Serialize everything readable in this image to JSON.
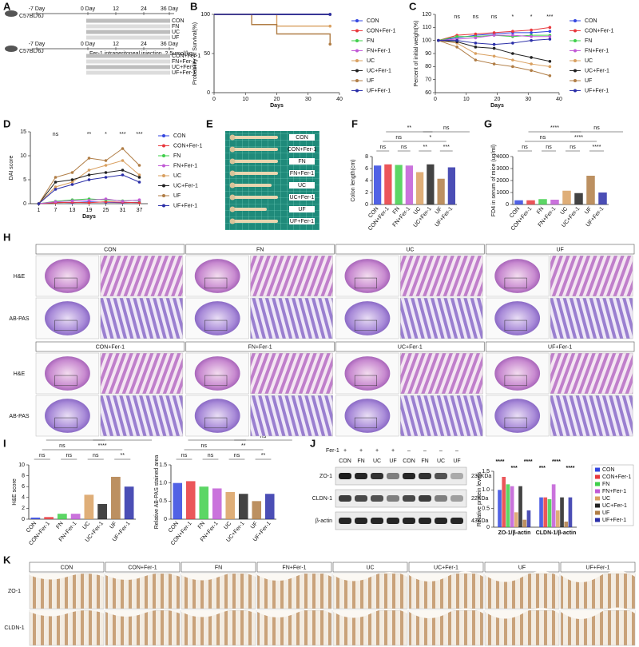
{
  "panel_a": {
    "letter": "A",
    "strain": "C57BL/6J",
    "timeline": [
      "-7 Day",
      "0 Day",
      "12",
      "24",
      "36 Day"
    ],
    "groups1": [
      "CON",
      "FN",
      "UC",
      "UF"
    ],
    "groups2": [
      "CON+Fer-1",
      "FN+Fer-1",
      "UC+Fer-1",
      "UF+Fer-1"
    ],
    "treatment2": "Fer-1 intraperitoneal injection, 2.5umol/kg"
  },
  "chart_data": [
    {
      "letter": "B",
      "type": "step",
      "xlabel": "Days",
      "ylabel": "Probability of Survival(%)",
      "x": [
        0,
        12,
        20,
        37
      ],
      "xlim": [
        0,
        40
      ],
      "xticks": [
        0,
        10,
        20,
        30,
        40
      ],
      "ylim": [
        0,
        100
      ],
      "yticks": [
        0,
        50,
        100
      ],
      "series": [
        {
          "name": "CON",
          "color": "#3346e0",
          "values": [
            100,
            100,
            100,
            100
          ]
        },
        {
          "name": "CON+Fer-1",
          "color": "#e8383d",
          "values": [
            100,
            100,
            100,
            100
          ]
        },
        {
          "name": "FN",
          "color": "#3fcf4a",
          "values": [
            100,
            100,
            100,
            100
          ]
        },
        {
          "name": "FN+Fer-1",
          "color": "#c15ad6",
          "values": [
            100,
            100,
            100,
            100
          ]
        },
        {
          "name": "UC",
          "color": "#d9a060",
          "values": [
            100,
            100,
            85,
            85
          ]
        },
        {
          "name": "UC+Fer-1",
          "color": "#222222",
          "values": [
            100,
            100,
            100,
            100
          ]
        },
        {
          "name": "UF",
          "color": "#b07d45",
          "values": [
            100,
            87,
            75,
            62
          ]
        },
        {
          "name": "UF+Fer-1",
          "color": "#2b2fa8",
          "values": [
            100,
            100,
            100,
            100
          ]
        }
      ]
    },
    {
      "letter": "C",
      "type": "line",
      "xlabel": "Days",
      "ylabel": "Percent of initial weight(%)",
      "x": [
        1,
        7,
        13,
        19,
        25,
        31,
        37
      ],
      "xlim": [
        0,
        40
      ],
      "xticks": [
        0,
        10,
        20,
        30,
        40
      ],
      "ylim": [
        60,
        120
      ],
      "yticks": [
        60,
        70,
        80,
        90,
        100,
        110,
        120
      ],
      "annotations": [
        "ns",
        "ns",
        "ns",
        "*",
        "*",
        "***"
      ],
      "series": [
        {
          "name": "CON",
          "color": "#3346e0",
          "values": [
            100,
            102,
            104,
            105,
            106,
            106,
            107
          ]
        },
        {
          "name": "CON+Fer-1",
          "color": "#e8383d",
          "values": [
            100,
            104,
            105,
            106,
            107,
            108,
            110
          ]
        },
        {
          "name": "FN",
          "color": "#3fcf4a",
          "values": [
            100,
            103,
            103,
            104,
            103,
            104,
            104
          ]
        },
        {
          "name": "FN+Fer-1",
          "color": "#c15ad6",
          "values": [
            100,
            101,
            102,
            104,
            104,
            103,
            103
          ]
        },
        {
          "name": "UC",
          "color": "#d9a060",
          "values": [
            100,
            98,
            90,
            88,
            85,
            82,
            80
          ]
        },
        {
          "name": "UC+Fer-1",
          "color": "#222222",
          "values": [
            100,
            99,
            95,
            94,
            90,
            87,
            84
          ]
        },
        {
          "name": "UF",
          "color": "#b07d45",
          "values": [
            100,
            95,
            85,
            82,
            80,
            77,
            73
          ]
        },
        {
          "name": "UF+Fer-1",
          "color": "#2b2fa8",
          "values": [
            100,
            100,
            98,
            97,
            98,
            100,
            101
          ]
        }
      ]
    },
    {
      "letter": "D",
      "type": "catline",
      "xlabel": "Days",
      "ylabel": "DAI score",
      "categories": [
        "1",
        "7",
        "13",
        "19",
        "25",
        "31",
        "37"
      ],
      "ylim": [
        0,
        15
      ],
      "yticks": [
        0,
        5,
        10,
        15
      ],
      "annotations": [
        "ns",
        "**",
        "*",
        "***",
        "***"
      ],
      "series": [
        {
          "name": "CON",
          "color": "#3346e0",
          "values": [
            0,
            0.3,
            0.2,
            0.4,
            0.3,
            0.2,
            0.3
          ]
        },
        {
          "name": "CON+Fer-1",
          "color": "#e8383d",
          "values": [
            0,
            0.2,
            0.3,
            0.2,
            0.4,
            0.3,
            0.2
          ]
        },
        {
          "name": "FN",
          "color": "#3fcf4a",
          "values": [
            0,
            0.5,
            0.8,
            1,
            0.8,
            0.6,
            0.7
          ]
        },
        {
          "name": "FN+Fer-1",
          "color": "#c15ad6",
          "values": [
            0,
            0.4,
            0.6,
            0.7,
            1,
            0.5,
            0.8
          ]
        },
        {
          "name": "UC",
          "color": "#d9a060",
          "values": [
            0,
            3.5,
            4.5,
            7,
            8,
            9,
            6
          ]
        },
        {
          "name": "UC+Fer-1",
          "color": "#222222",
          "values": [
            0,
            4.5,
            5,
            6,
            6.5,
            7,
            5.5
          ]
        },
        {
          "name": "UF",
          "color": "#b07d45",
          "values": [
            0,
            5.5,
            6.5,
            9.5,
            9,
            11.5,
            8
          ]
        },
        {
          "name": "UF+Fer-1",
          "color": "#2b2fa8",
          "values": [
            0,
            3,
            4,
            5,
            5.5,
            6,
            4.5
          ]
        }
      ]
    },
    {
      "letter": "F",
      "type": "bar",
      "ylabel": "Colon length(cm)",
      "categories": [
        "CON",
        "CON+Fer-1",
        "FN",
        "FN+Fer-1",
        "UC",
        "UC+Fer-1",
        "UF",
        "UF+Fer-1"
      ],
      "values": [
        6.5,
        6.7,
        6.6,
        6.5,
        5.4,
        6.7,
        4.3,
        6.2
      ],
      "colors": [
        "#3346e0",
        "#e8383d",
        "#3fcf4a",
        "#c15ad6",
        "#d9a060",
        "#222222",
        "#b07d45",
        "#2b2fa8"
      ],
      "ylim": [
        0,
        8
      ],
      "yticks": [
        0,
        2,
        4,
        6,
        8
      ],
      "annotations": [
        "**",
        "ns",
        "ns",
        "*",
        "ns",
        "ns",
        "**",
        "***"
      ]
    },
    {
      "letter": "G",
      "type": "bar",
      "ylabel": "FD4 in serum of mice (ug/ml)",
      "categories": [
        "CON",
        "CON+Fer-1",
        "FN",
        "FN+Fer-1",
        "UC",
        "UC+Fer-1",
        "UF",
        "UF+Fer-1"
      ],
      "values": [
        350,
        350,
        450,
        400,
        1150,
        950,
        2400,
        1000
      ],
      "colors": [
        "#3346e0",
        "#e8383d",
        "#3fcf4a",
        "#c15ad6",
        "#d9a060",
        "#222222",
        "#b07d45",
        "#2b2fa8"
      ],
      "ylim": [
        0,
        4000
      ],
      "yticks": [
        0,
        1000,
        2000,
        3000,
        4000
      ],
      "annotations": [
        "****",
        "ns",
        "ns",
        "****",
        "ns",
        "ns",
        "ns",
        "****"
      ]
    },
    {
      "letter": "I",
      "type": "bar",
      "ylabel": "H&E score",
      "categories": [
        "CON",
        "CON+Fer-1",
        "FN",
        "FN+Fer-1",
        "UC",
        "UC+Fer-1",
        "UF",
        "UF+Fer-1"
      ],
      "values": [
        0.3,
        0.4,
        1,
        1,
        4.5,
        2.8,
        7.8,
        6
      ],
      "colors": [
        "#3346e0",
        "#e8383d",
        "#3fcf4a",
        "#c15ad6",
        "#d9a060",
        "#222222",
        "#b07d45",
        "#2b2fa8"
      ],
      "ylim": [
        0,
        10
      ],
      "yticks": [
        0,
        2,
        4,
        6,
        8,
        10
      ],
      "annotations": [
        "****",
        "**",
        "ns",
        "****",
        "ns",
        "ns",
        "ns",
        "**"
      ]
    },
    {
      "type": "bar",
      "ylabel": "Relative AB-PAS stained area",
      "categories": [
        "CON",
        "CON+Fer-1",
        "FN",
        "FN+Fer-1",
        "UC",
        "UC+Fer-1",
        "UF",
        "UF+Fer-1"
      ],
      "values": [
        1.0,
        1.05,
        0.9,
        0.85,
        0.75,
        0.7,
        0.5,
        0.7
      ],
      "colors": [
        "#3346e0",
        "#e8383d",
        "#3fcf4a",
        "#c15ad6",
        "#d9a060",
        "#222222",
        "#b07d45",
        "#2b2fa8"
      ],
      "ylim": [
        0,
        1.5
      ],
      "yticks": [
        0,
        0.5,
        {
          "value": 1,
          "label": "1.0"
        },
        1.5
      ],
      "annotations": [
        "****",
        "ns",
        "ns",
        "**",
        "ns",
        "ns",
        "ns",
        "**"
      ]
    },
    {
      "type": "grouped_bar",
      "ylabel": "Relative protein levels",
      "categories": [
        "ZO-1/β-actin",
        "CLDN-1/β-actin"
      ],
      "ylim": [
        0,
        1.5
      ],
      "yticks": [
        0,
        0.5,
        {
          "value": 1,
          "label": "1.0"
        },
        1.5
      ],
      "annotations": [
        "****",
        "***",
        "****",
        "***",
        "****",
        "****"
      ],
      "series": [
        {
          "name": "CON",
          "color": "#3346e0",
          "values": [
            1.0,
            0.8
          ]
        },
        {
          "name": "CON+Fer-1",
          "color": "#e8383d",
          "values": [
            1.35,
            0.8
          ]
        },
        {
          "name": "FN",
          "color": "#3fcf4a",
          "values": [
            1.15,
            0.75
          ]
        },
        {
          "name": "FN+Fer-1",
          "color": "#c15ad6",
          "values": [
            1.1,
            1.15
          ]
        },
        {
          "name": "UC",
          "color": "#d9a060",
          "values": [
            0.4,
            0.45
          ]
        },
        {
          "name": "UC+Fer-1",
          "color": "#222222",
          "values": [
            1.1,
            0.8
          ]
        },
        {
          "name": "UF",
          "color": "#b07d45",
          "values": [
            0.2,
            0.15
          ]
        },
        {
          "name": "UF+Fer-1",
          "color": "#2b2fa8",
          "values": [
            0.45,
            0.8
          ]
        }
      ]
    }
  ],
  "panel_e": {
    "letter": "E",
    "labels": [
      "CON",
      "CON+Fer-1",
      "FN",
      "FN+Fer-1",
      "UC",
      "UC+Fer-1",
      "UF",
      "UF+Fer-1"
    ]
  },
  "panel_h": {
    "letter": "H",
    "groups_top": [
      "CON",
      "FN",
      "UC",
      "UF"
    ],
    "groups_bottom": [
      "CON+Fer-1",
      "FN+Fer-1",
      "UC+Fer-1",
      "UF+Fer-1"
    ],
    "stains": [
      "H&E",
      "AB-PAS"
    ]
  },
  "panel_j": {
    "letter": "J",
    "treatment": "Fer-1",
    "signs": [
      "+",
      "+",
      "+",
      "+",
      "–",
      "–",
      "–",
      "–"
    ],
    "lanes": [
      "CON",
      "FN",
      "UC",
      "UF",
      "CON",
      "FN",
      "UC",
      "UF"
    ],
    "proteins": [
      "ZO-1",
      "CLDN-1",
      "β-actin"
    ],
    "sizes": [
      "230KDa",
      "22KDa",
      "43KDa"
    ]
  },
  "panel_k": {
    "letter": "K",
    "groups": [
      "CON",
      "CON+Fer-1",
      "FN",
      "FN+Fer-1",
      "UC",
      "UC+Fer-1",
      "UF",
      "UF+Fer-1"
    ],
    "markers": [
      "ZO-1",
      "CLDN-1"
    ]
  }
}
